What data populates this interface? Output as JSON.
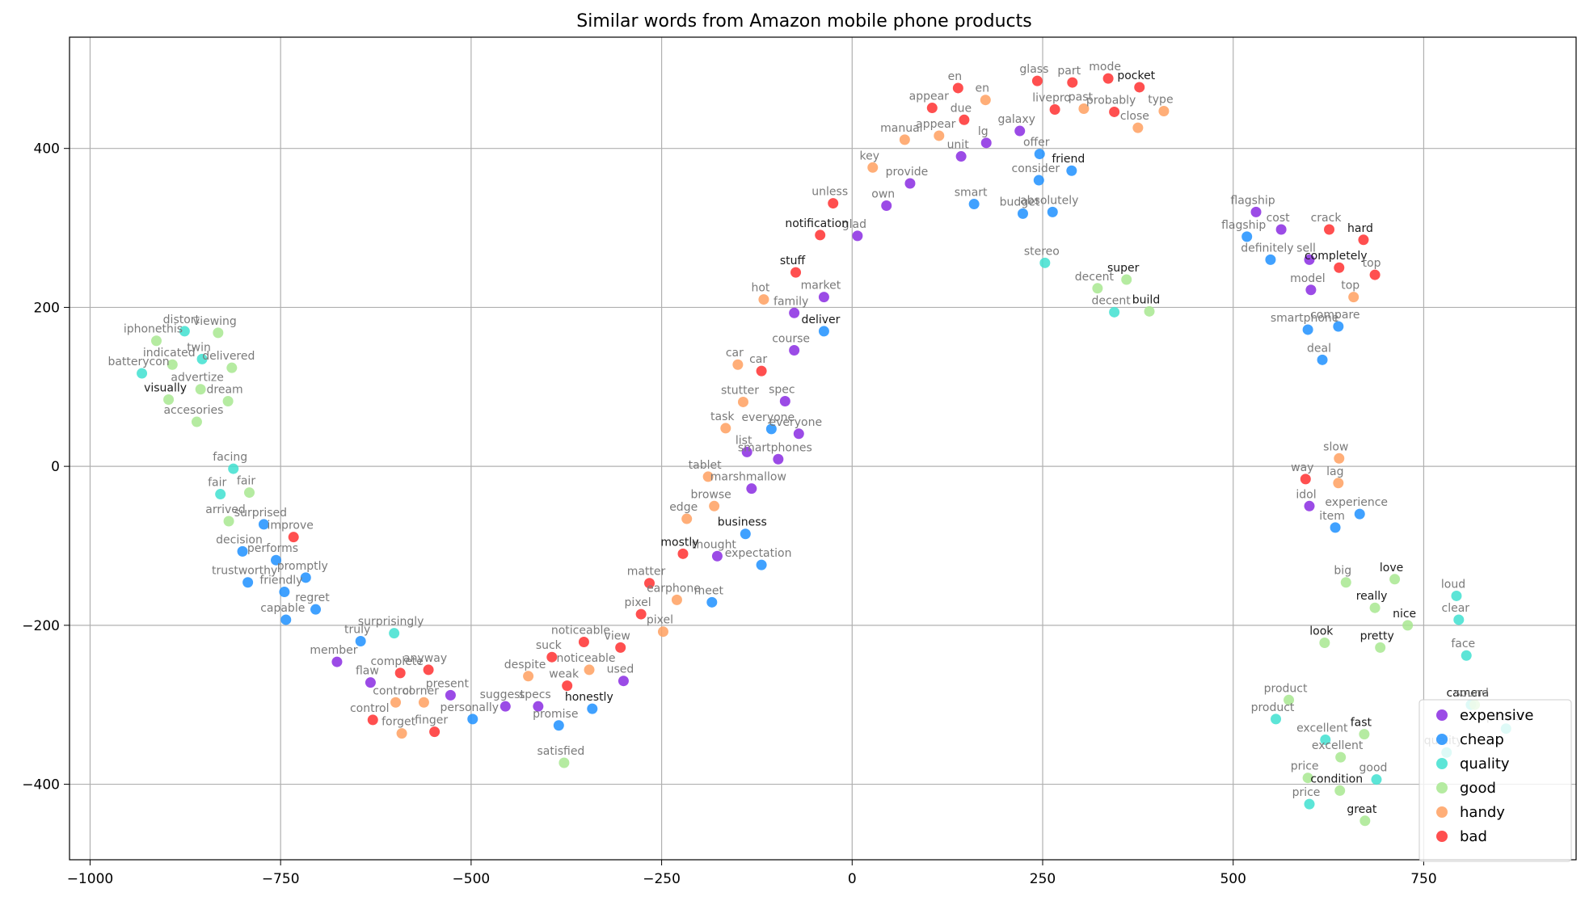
{
  "chart_data": {
    "type": "scatter",
    "title": "Similar words from Amazon mobile phone products",
    "xlabel": "",
    "ylabel": "",
    "xlim": [
      -1027,
      950
    ],
    "ylim": [
      -495,
      540
    ],
    "xticks": [
      -1000,
      -750,
      -500,
      -250,
      0,
      250,
      500,
      750
    ],
    "yticks": [
      -400,
      -200,
      0,
      200,
      400
    ],
    "xtick_labels": [
      "−1000",
      "−750",
      "−500",
      "−250",
      "0",
      "250",
      "500",
      "750"
    ],
    "ytick_labels": [
      "−400",
      "−200",
      "0",
      "200",
      "400"
    ],
    "grid": true,
    "legend": "lower-right",
    "series": [
      {
        "name": "expensive",
        "color": "#8a2be2",
        "points": [
          {
            "x": 530,
            "y": 320,
            "label": "flagship"
          },
          {
            "x": 563,
            "y": 298,
            "label": "cost"
          },
          {
            "x": 600,
            "y": 260,
            "label": "sell"
          },
          {
            "x": 602,
            "y": 222,
            "label": "model"
          },
          {
            "x": 600,
            "y": -50,
            "label": "idol"
          },
          {
            "x": 143,
            "y": 390,
            "label": "unit"
          },
          {
            "x": 176,
            "y": 407,
            "label": "lg"
          },
          {
            "x": 220,
            "y": 422,
            "label": "galaxy"
          },
          {
            "x": 76,
            "y": 356,
            "label": "provide"
          },
          {
            "x": 45,
            "y": 328,
            "label": "own"
          },
          {
            "x": 7,
            "y": 290,
            "label": "glad"
          },
          {
            "x": -37,
            "y": 213,
            "label": "market"
          },
          {
            "x": -76,
            "y": 193,
            "label": "family"
          },
          {
            "x": -76,
            "y": 146,
            "label": "course"
          },
          {
            "x": -88,
            "y": 82,
            "label": "spec"
          },
          {
            "x": -70,
            "y": 41,
            "label": "everyone"
          },
          {
            "x": -138,
            "y": 18,
            "label": "list"
          },
          {
            "x": -97,
            "y": 9,
            "label": "smartphones"
          },
          {
            "x": -132,
            "y": -28,
            "label": "marshmallow"
          },
          {
            "x": -177,
            "y": -113,
            "label": "thought"
          },
          {
            "x": -300,
            "y": -270,
            "label": "used"
          },
          {
            "x": -412,
            "y": -302,
            "label": "specs"
          },
          {
            "x": -455,
            "y": -302,
            "label": "suggest"
          },
          {
            "x": -527,
            "y": -288,
            "label": "present"
          },
          {
            "x": -632,
            "y": -272,
            "label": "flaw"
          },
          {
            "x": -676,
            "y": -246,
            "label": "member"
          }
        ]
      },
      {
        "name": "cheap",
        "color": "#1e90ff",
        "points": [
          {
            "x": 246,
            "y": 393,
            "label": "offer"
          },
          {
            "x": 288,
            "y": 372,
            "label": "friend"
          },
          {
            "x": 245,
            "y": 360,
            "label": "consider"
          },
          {
            "x": 160,
            "y": 330,
            "label": "smart"
          },
          {
            "x": 224,
            "y": 318,
            "label": "budget"
          },
          {
            "x": 263,
            "y": 320,
            "label": "absolutely"
          },
          {
            "x": 518,
            "y": 289,
            "label": "flagship"
          },
          {
            "x": 549,
            "y": 260,
            "label": "definitely"
          },
          {
            "x": 598,
            "y": 172,
            "label": "smartphone"
          },
          {
            "x": 638,
            "y": 176,
            "label": "compare"
          },
          {
            "x": 617,
            "y": 134,
            "label": "deal"
          },
          {
            "x": -37,
            "y": 170,
            "label": "deliver"
          },
          {
            "x": -106,
            "y": 47,
            "label": "everyone"
          },
          {
            "x": -140,
            "y": -85,
            "label": "business"
          },
          {
            "x": -119,
            "y": -124,
            "label": "expectation"
          },
          {
            "x": -184,
            "y": -171,
            "label": "meet"
          },
          {
            "x": 666,
            "y": -60,
            "label": "experience"
          },
          {
            "x": 634,
            "y": -77,
            "label": "item"
          },
          {
            "x": -341,
            "y": -305,
            "label": "honestly"
          },
          {
            "x": -385,
            "y": -326,
            "label": "promise"
          },
          {
            "x": -498,
            "y": -318,
            "label": "personally"
          },
          {
            "x": -645,
            "y": -220,
            "label": "truly"
          },
          {
            "x": -704,
            "y": -180,
            "label": "regret"
          },
          {
            "x": -743,
            "y": -193,
            "label": "capable"
          },
          {
            "x": -745,
            "y": -158,
            "label": "friendly"
          },
          {
            "x": -717,
            "y": -140,
            "label": "promptly"
          },
          {
            "x": -756,
            "y": -118,
            "label": "performs"
          },
          {
            "x": -793,
            "y": -146,
            "label": "trustworthy"
          },
          {
            "x": -800,
            "y": -107,
            "label": "decision"
          },
          {
            "x": -772,
            "y": -73,
            "label": "surprised"
          }
        ]
      },
      {
        "name": "quality",
        "color": "#40e0d0",
        "points": [
          {
            "x": 253,
            "y": 256,
            "label": "stereo"
          },
          {
            "x": 344,
            "y": 194,
            "label": "decent"
          },
          {
            "x": -812,
            "y": -3,
            "label": "facing"
          },
          {
            "x": -829,
            "y": -35,
            "label": "fair"
          },
          {
            "x": -853,
            "y": 135,
            "label": "twin"
          },
          {
            "x": -876,
            "y": 170,
            "label": "distort"
          },
          {
            "x": -932,
            "y": 117,
            "label": "batterycon"
          },
          {
            "x": -601,
            "y": -210,
            "label": "surprisingly"
          },
          {
            "x": 793,
            "y": -163,
            "label": "loud"
          },
          {
            "x": 796,
            "y": -193,
            "label": "clear"
          },
          {
            "x": 806,
            "y": -238,
            "label": "face"
          },
          {
            "x": 812,
            "y": -300,
            "label": "camera"
          },
          {
            "x": 556,
            "y": -318,
            "label": "product"
          },
          {
            "x": 621,
            "y": -344,
            "label": "excellent"
          },
          {
            "x": 600,
            "y": -425,
            "label": "price"
          },
          {
            "x": 688,
            "y": -394,
            "label": "good"
          },
          {
            "x": 780,
            "y": -360,
            "label": "quality"
          },
          {
            "x": 858,
            "y": -330,
            "label": "speaker"
          }
        ]
      },
      {
        "name": "good",
        "color": "#a8e890",
        "points": [
          {
            "x": 360,
            "y": 235,
            "label": "super"
          },
          {
            "x": 322,
            "y": 224,
            "label": "decent"
          },
          {
            "x": 390,
            "y": 195,
            "label": "build"
          },
          {
            "x": -832,
            "y": 168,
            "label": "viewing"
          },
          {
            "x": -913,
            "y": 158,
            "label": "iphonethis"
          },
          {
            "x": -892,
            "y": 128,
            "label": "indicated"
          },
          {
            "x": -814,
            "y": 124,
            "label": "delivered"
          },
          {
            "x": -855,
            "y": 97,
            "label": "advertize"
          },
          {
            "x": -819,
            "y": 82,
            "label": "dream"
          },
          {
            "x": -897,
            "y": 84,
            "label": "visually"
          },
          {
            "x": -860,
            "y": 56,
            "label": "accesories"
          },
          {
            "x": -791,
            "y": -33,
            "label": "fair"
          },
          {
            "x": -818,
            "y": -69,
            "label": "arrived"
          },
          {
            "x": -378,
            "y": -373,
            "label": "satisfied"
          },
          {
            "x": 648,
            "y": -146,
            "label": "big"
          },
          {
            "x": 712,
            "y": -142,
            "label": "love"
          },
          {
            "x": 686,
            "y": -178,
            "label": "really"
          },
          {
            "x": 729,
            "y": -200,
            "label": "nice"
          },
          {
            "x": 620,
            "y": -222,
            "label": "look"
          },
          {
            "x": 693,
            "y": -228,
            "label": "pretty"
          },
          {
            "x": 573,
            "y": -294,
            "label": "product"
          },
          {
            "x": 672,
            "y": -337,
            "label": "fast"
          },
          {
            "x": 641,
            "y": -366,
            "label": "excellent"
          },
          {
            "x": 598,
            "y": -392,
            "label": "price"
          },
          {
            "x": 640,
            "y": -408,
            "label": "condition"
          },
          {
            "x": 673,
            "y": -446,
            "label": "great"
          },
          {
            "x": 817,
            "y": -300,
            "label": "sound"
          }
        ]
      },
      {
        "name": "handy",
        "color": "#ffa060",
        "points": [
          {
            "x": 175,
            "y": 461,
            "label": "en"
          },
          {
            "x": 304,
            "y": 450,
            "label": "past"
          },
          {
            "x": 409,
            "y": 447,
            "label": "type"
          },
          {
            "x": 375,
            "y": 426,
            "label": "close"
          },
          {
            "x": 114,
            "y": 416,
            "label": "appear"
          },
          {
            "x": 69,
            "y": 411,
            "label": "manual"
          },
          {
            "x": 27,
            "y": 376,
            "label": "key"
          },
          {
            "x": -116,
            "y": 210,
            "label": "hot"
          },
          {
            "x": -150,
            "y": 128,
            "label": "car"
          },
          {
            "x": -143,
            "y": 81,
            "label": "stutter"
          },
          {
            "x": -166,
            "y": 48,
            "label": "task"
          },
          {
            "x": -189,
            "y": -13,
            "label": "tablet"
          },
          {
            "x": -181,
            "y": -50,
            "label": "browse"
          },
          {
            "x": -217,
            "y": -66,
            "label": "edge"
          },
          {
            "x": -230,
            "y": -168,
            "label": "earphone"
          },
          {
            "x": -248,
            "y": -208,
            "label": "pixel"
          },
          {
            "x": -345,
            "y": -256,
            "label": "noticeable"
          },
          {
            "x": -425,
            "y": -264,
            "label": "despite"
          },
          {
            "x": -599,
            "y": -297,
            "label": "control"
          },
          {
            "x": -562,
            "y": -297,
            "label": "corner"
          },
          {
            "x": -591,
            "y": -336,
            "label": "forget"
          },
          {
            "x": 638,
            "y": -21,
            "label": "lag"
          },
          {
            "x": 639,
            "y": 10,
            "label": "slow"
          },
          {
            "x": 658,
            "y": 213,
            "label": "top"
          }
        ]
      },
      {
        "name": "bad",
        "color": "#ff3030",
        "points": [
          {
            "x": 139,
            "y": 476,
            "label": "en"
          },
          {
            "x": 243,
            "y": 485,
            "label": "glass"
          },
          {
            "x": 289,
            "y": 483,
            "label": "part"
          },
          {
            "x": 336,
            "y": 488,
            "label": "mode"
          },
          {
            "x": 377,
            "y": 477,
            "label": "pocket"
          },
          {
            "x": 105,
            "y": 451,
            "label": "appear"
          },
          {
            "x": 147,
            "y": 436,
            "label": "due"
          },
          {
            "x": 266,
            "y": 449,
            "label": "livepro"
          },
          {
            "x": 344,
            "y": 446,
            "label": "probably"
          },
          {
            "x": -25,
            "y": 331,
            "label": "unless"
          },
          {
            "x": -42,
            "y": 291,
            "label": "notification"
          },
          {
            "x": -74,
            "y": 244,
            "label": "stuff"
          },
          {
            "x": -119,
            "y": 120,
            "label": "car"
          },
          {
            "x": 626,
            "y": 298,
            "label": "crack"
          },
          {
            "x": 671,
            "y": 285,
            "label": "hard"
          },
          {
            "x": 639,
            "y": 250,
            "label": "completely"
          },
          {
            "x": 686,
            "y": 241,
            "label": "top"
          },
          {
            "x": 595,
            "y": -16,
            "label": "way"
          },
          {
            "x": -733,
            "y": -89,
            "label": "improve"
          },
          {
            "x": -222,
            "y": -110,
            "label": "mostly"
          },
          {
            "x": -266,
            "y": -147,
            "label": "matter"
          },
          {
            "x": -277,
            "y": -186,
            "label": "pixel"
          },
          {
            "x": -304,
            "y": -228,
            "label": "view"
          },
          {
            "x": -352,
            "y": -221,
            "label": "noticeable"
          },
          {
            "x": -394,
            "y": -240,
            "label": "suck"
          },
          {
            "x": -374,
            "y": -276,
            "label": "weak"
          },
          {
            "x": -556,
            "y": -256,
            "label": "anyway"
          },
          {
            "x": -593,
            "y": -260,
            "label": "complete"
          },
          {
            "x": -629,
            "y": -319,
            "label": "control"
          },
          {
            "x": -548,
            "y": -334,
            "label": "finger"
          }
        ]
      }
    ],
    "dark_labels": [
      "pocket",
      "friend",
      "notification",
      "stuff",
      "deliver",
      "business",
      "mostly",
      "honestly",
      "visually",
      "hard",
      "completely",
      "super",
      "build",
      "love",
      "really",
      "nice",
      "look",
      "pretty",
      "camera",
      "fast",
      "condition",
      "great"
    ]
  }
}
